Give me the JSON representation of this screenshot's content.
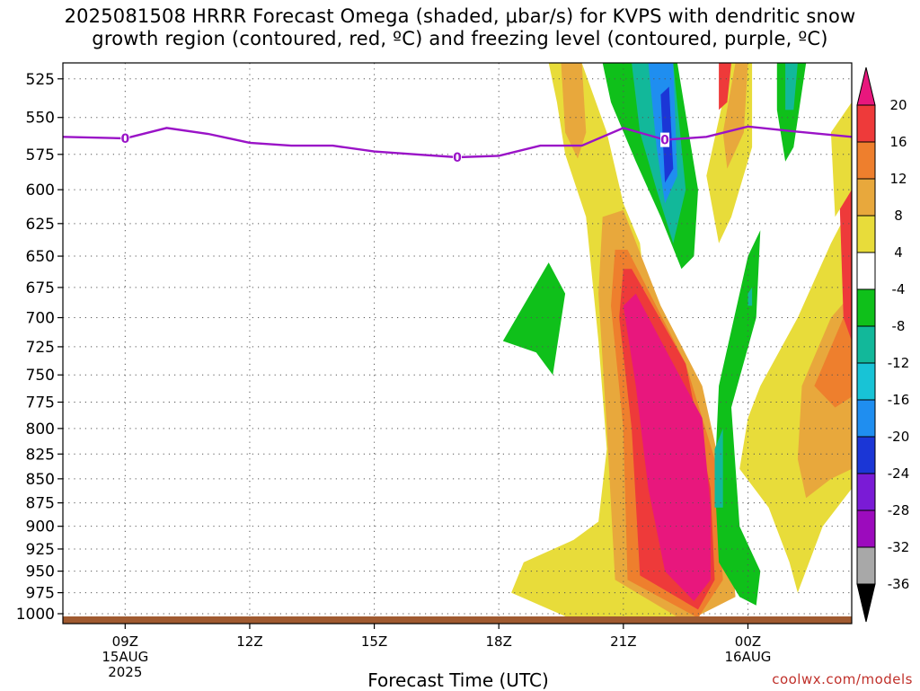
{
  "title_lines": [
    "2025081508 HRRR Forecast Omega (shaded, μbar/s) for KVPS with dendritic snow",
    "growth region (contoured, red, ºC) and freezing level (contoured, purple, ºC)"
  ],
  "xlabel": "Forecast Time (UTC)",
  "credit": "coolwx.com/models",
  "chart_data": {
    "type": "heatmap",
    "y_axis": {
      "label": "",
      "ticks": [
        "525",
        "550",
        "575",
        "600",
        "625",
        "650",
        "675",
        "700",
        "725",
        "750",
        "775",
        "800",
        "825",
        "850",
        "875",
        "900",
        "925",
        "950",
        "975",
        "1000"
      ],
      "range": [
        1012,
        515
      ],
      "scale": "log-pressure"
    },
    "x_axis": {
      "label": "Forecast Time (UTC)",
      "range_hours": [
        7.5,
        26.5
      ],
      "ticks": [
        {
          "hour": 9,
          "label": "09Z",
          "sub1": "15AUG",
          "sub2": "2025"
        },
        {
          "hour": 12,
          "label": "12Z",
          "sub1": "",
          "sub2": ""
        },
        {
          "hour": 15,
          "label": "15Z",
          "sub1": "",
          "sub2": ""
        },
        {
          "hour": 18,
          "label": "18Z",
          "sub1": "",
          "sub2": ""
        },
        {
          "hour": 21,
          "label": "21Z",
          "sub1": "",
          "sub2": ""
        },
        {
          "hour": 24,
          "label": "00Z",
          "sub1": "16AUG",
          "sub2": ""
        }
      ]
    },
    "grid": true,
    "colorbar": {
      "levels": [
        "20",
        "16",
        "12",
        "8",
        "4",
        "-4",
        "-8",
        "-12",
        "-16",
        "-20",
        "-24",
        "-28",
        "-32",
        "-36"
      ],
      "colors": [
        "#e8177d",
        "#ee3a3a",
        "#ee7f2d",
        "#e8a83c",
        "#e8dc3a",
        "#ffffff",
        "#0fc01a",
        "#12b89a",
        "#18c3d6",
        "#1f8ef0",
        "#1b36d6",
        "#7a1bd6",
        "#9c0bbd",
        "#a8a8a8",
        "#000000"
      ]
    },
    "omega_fields": [
      {
        "value": 4,
        "desc": "rising motion bands (positive)"
      },
      {
        "value": -8,
        "desc": "sinking motion bands (negative)"
      }
    ],
    "freezing_level": {
      "label_value": "0",
      "points_hour": [
        7.5,
        9,
        10,
        11,
        12,
        13,
        14,
        15,
        16,
        17,
        18,
        19,
        20,
        21,
        22,
        23,
        24,
        25,
        26.5
      ],
      "points_mb": [
        563,
        564,
        557,
        561,
        567,
        569,
        569,
        573,
        575,
        577,
        576,
        569,
        569,
        557,
        565,
        563,
        556,
        559,
        563
      ],
      "label_hours": [
        9,
        17,
        22
      ]
    },
    "terrain_mb": 1012
  }
}
